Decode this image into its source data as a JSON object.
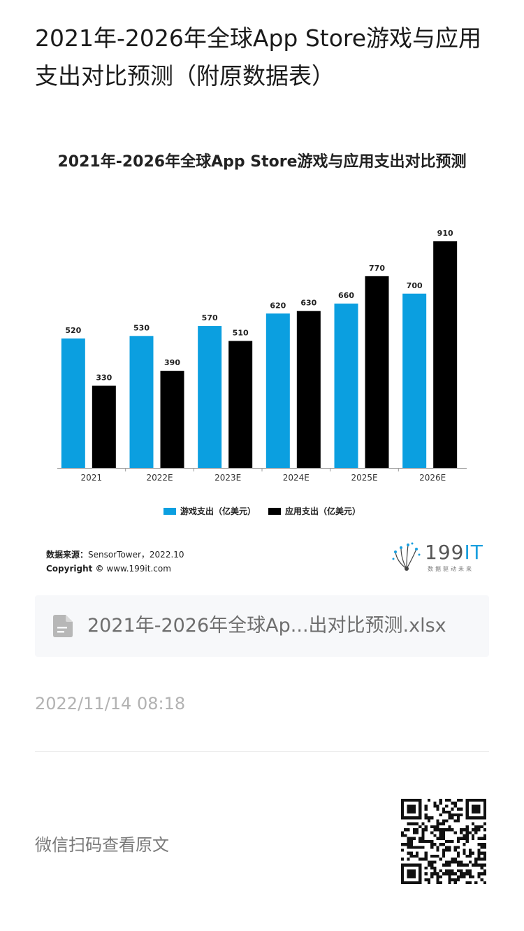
{
  "article": {
    "title": "2021年-2026年全球App Store游戏与应用支出对比预测（附原数据表）"
  },
  "chart": {
    "title": "2021年-2026年全球App Store游戏与应用支出对比预测",
    "legend": [
      "游戏支出（亿美元）",
      "应用支出（亿美元）"
    ],
    "source_label": "数据来源：",
    "source_value": "SensorTower，2022.10",
    "copyright_label": "Copyright ©",
    "copyright_value": "www.199it.com",
    "colors": {
      "games": "#0b9fe0",
      "apps": "#000000"
    }
  },
  "chart_data": {
    "type": "bar",
    "title": "2021年-2026年全球App Store游戏与应用支出对比预测",
    "categories": [
      "2021",
      "2022E",
      "2023E",
      "2024E",
      "2025E",
      "2026E"
    ],
    "series": [
      {
        "name": "游戏支出（亿美元）",
        "values": [
          520,
          530,
          570,
          620,
          660,
          700
        ]
      },
      {
        "name": "应用支出（亿美元）",
        "values": [
          330,
          390,
          510,
          630,
          770,
          910
        ]
      }
    ],
    "xlabel": "",
    "ylabel": "",
    "ylim": [
      0,
      910
    ],
    "grid": false,
    "legend_position": "bottom"
  },
  "brand": {
    "logo_text_a": "199",
    "logo_text_b": "IT",
    "tagline": "数据驱动未来"
  },
  "attachment": {
    "icon": "document-icon",
    "file_name": "2021年-2026年全球Ap...出对比预测.xlsx"
  },
  "meta": {
    "timestamp": "2022/11/14 08:18",
    "qr_label": "微信扫码查看原文"
  }
}
